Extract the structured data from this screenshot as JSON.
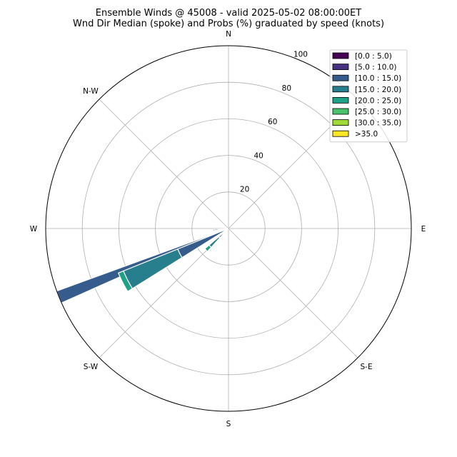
{
  "chart_data": {
    "type": "windrose",
    "title": "Ensemble Winds @ 45008 - valid 2025-05-02 08:00:00ET",
    "subtitle": "Wnd Dir Median (spoke) and Probs (%) graduated by speed (knots)",
    "direction_labels": {
      "N": "N",
      "NE": "",
      "E": "E",
      "SE": "S-E",
      "S": "S",
      "SW": "S-W",
      "W": "W",
      "NW": "N-W"
    },
    "radial_ticks": [
      20,
      40,
      60,
      80,
      100
    ],
    "rmax": 100,
    "legend_placement": "top-right",
    "legend": [
      {
        "label": "[0.0 : 5.0)",
        "color": "#440154"
      },
      {
        "label": "[5.0 : 10.0)",
        "color": "#46327e"
      },
      {
        "label": "[10.0 : 15.0)",
        "color": "#365c8d"
      },
      {
        "label": "[15.0 : 20.0)",
        "color": "#277f8e"
      },
      {
        "label": "[20.0 : 25.0)",
        "color": "#1fa187"
      },
      {
        "label": "[25.0 : 30.0)",
        "color": "#4ac16d"
      },
      {
        "label": "[30.0 : 35.0)",
        "color": "#a0da39"
      },
      {
        "label": ">35.0",
        "color": "#fde725"
      }
    ],
    "sectors": [
      {
        "direction_deg": 248,
        "width_deg": 4,
        "stacks": [
          {
            "bin": "[10.0 : 15.0)",
            "from": 0,
            "to": 100
          }
        ]
      },
      {
        "direction_deg": 243,
        "width_deg": 10,
        "stacks": [
          {
            "bin": "[10.0 : 15.0)",
            "from": 0,
            "to": 30
          },
          {
            "bin": "[15.0 : 20.0)",
            "from": 30,
            "to": 62
          },
          {
            "bin": "[20.0 : 25.0)",
            "from": 62,
            "to": 65
          }
        ]
      },
      {
        "direction_deg": 226,
        "width_deg": 7,
        "stacks": [
          {
            "bin": "[10.0 : 15.0)",
            "from": 0,
            "to": 7
          },
          {
            "bin": "[15.0 : 20.0)",
            "from": 7,
            "to": 14
          },
          {
            "bin": "[20.0 : 25.0)",
            "from": 14,
            "to": 17
          }
        ]
      },
      {
        "direction_deg": 264,
        "width_deg": 5,
        "stacks": [
          {
            "bin": "[10.0 : 15.0)",
            "from": 0,
            "to": 7.5
          },
          {
            "bin": "[15.0 : 20.0)",
            "from": 7.5,
            "to": 8.5
          }
        ]
      }
    ]
  }
}
